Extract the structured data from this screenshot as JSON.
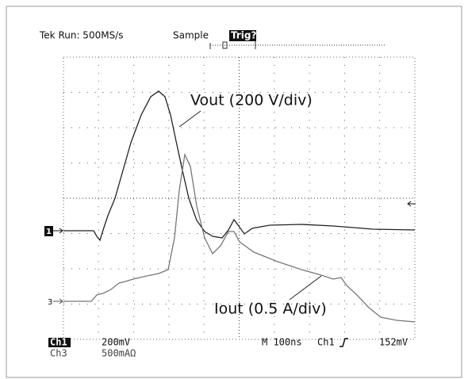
{
  "header": {
    "status": "Tek Run: 500MS/s",
    "mode": "Sample",
    "trigger": "Trig?"
  },
  "traces": [
    {
      "marker": "1",
      "label": "Vout (200 V/div)"
    },
    {
      "marker": "3",
      "label": "Iout (0.5 A/div)"
    }
  ],
  "footer": {
    "ch1": "Ch1",
    "ch1_scale": "200mV",
    "ch3": "Ch3",
    "ch3_scale": "500mAΩ",
    "timebase": "M 100ns",
    "trig_source": "Ch1",
    "trig_level": "152mV"
  }
}
